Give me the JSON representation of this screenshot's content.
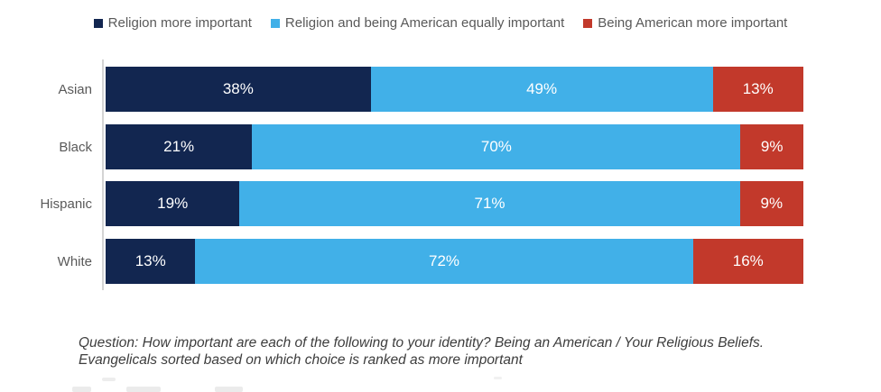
{
  "chart_data": {
    "type": "bar",
    "orientation": "horizontal",
    "stacked": true,
    "categories": [
      "Asian",
      "Black",
      "Hispanic",
      "White"
    ],
    "series": [
      {
        "name": "Religion more important",
        "color": "#122650",
        "values": [
          38,
          21,
          19,
          13
        ]
      },
      {
        "name": "Religion and being American equally important",
        "color": "#41b0e8",
        "values": [
          49,
          70,
          71,
          72
        ]
      },
      {
        "name": "Being American more important",
        "color": "#c2392b",
        "values": [
          13,
          9,
          9,
          16
        ]
      }
    ],
    "value_label_format": "percent",
    "value_label_color": "#ffffff",
    "xlim": [
      0,
      100
    ],
    "grid": false,
    "legend_position": "top",
    "title": "",
    "xlabel": "",
    "ylabel": ""
  },
  "colors": {
    "axis_line": "#d4d4d4",
    "category_label": "#595959",
    "legend_text": "#595959",
    "footnote_text": "#3d3d3d",
    "background": "#ffffff"
  },
  "footnote": {
    "line1": "Question: How important are each of the following to your identity? Being an American / Your Religious Beliefs.",
    "line2": "Evangelicals sorted based on which choice is ranked as more important"
  }
}
